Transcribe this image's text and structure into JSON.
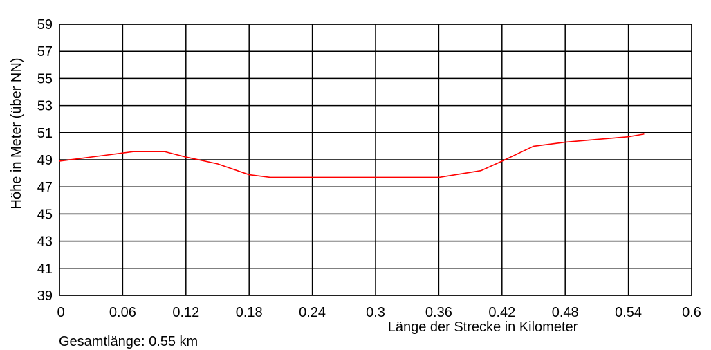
{
  "chart_data": {
    "type": "line",
    "title": "",
    "xlabel": "Länge der Strecke in Kilometer",
    "ylabel": "Höhe in Meter (über NN)",
    "xlim": [
      0,
      0.6
    ],
    "ylim": [
      39,
      59
    ],
    "x_ticks": [
      0,
      0.06,
      0.12,
      0.18,
      0.24,
      0.3,
      0.36,
      0.42,
      0.48,
      0.54,
      0.6
    ],
    "x_tick_labels": [
      "0",
      "0.06",
      "0.12",
      "0.18",
      "0.24",
      "0.3",
      "0.36",
      "0.42",
      "0.48",
      "0.54",
      "0.6"
    ],
    "y_ticks": [
      39,
      41,
      43,
      45,
      47,
      49,
      51,
      53,
      55,
      57,
      59
    ],
    "y_tick_labels": [
      "39",
      "41",
      "43",
      "45",
      "47",
      "49",
      "51",
      "53",
      "55",
      "57",
      "59"
    ],
    "grid": true,
    "line_color": "#ff0000",
    "series": [
      {
        "x": [
          0,
          0.02,
          0.04,
          0.06,
          0.07,
          0.08,
          0.1,
          0.12,
          0.15,
          0.18,
          0.2,
          0.24,
          0.28,
          0.32,
          0.36,
          0.4,
          0.42,
          0.45,
          0.48,
          0.51,
          0.54,
          0.555
        ],
        "y": [
          48.9,
          49.1,
          49.3,
          49.5,
          49.6,
          49.6,
          49.6,
          49.2,
          48.7,
          47.9,
          47.7,
          47.7,
          47.7,
          47.7,
          47.7,
          48.2,
          48.9,
          50.0,
          50.3,
          50.5,
          50.7,
          50.9
        ]
      }
    ]
  },
  "footer": {
    "text": "Gesamtlänge: 0.55 km"
  }
}
